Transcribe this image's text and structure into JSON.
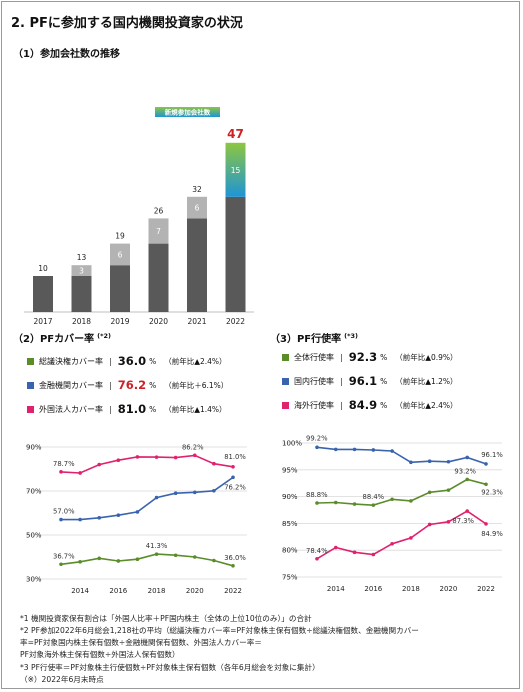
{
  "title": "2.  PFに参加する国内機関投資家の状況",
  "bar_section": {
    "title": "（1）参加会社数の推移"
  },
  "left_section": {
    "title": "（2）PFカバー率",
    "note": "(*2)"
  },
  "right_section": {
    "title": "（3）PF行使率",
    "note": "(*3)"
  },
  "colors": {
    "base": "#595959",
    "new_light": "#b3b3b3",
    "new_gradient_top": "#8dc63f",
    "new_gradient_bottom": "#1e95d6",
    "highlight_red": "#cc2227",
    "series_green": "#5b8c2a",
    "series_blue": "#3a63ad",
    "series_pink": "#e0226e"
  },
  "left_legend": [
    {
      "label": "総議決権カバー率",
      "value": "36.0",
      "unit": "%",
      "change": "（前年比▲2.4%）",
      "color": "#5b8c2a",
      "highlight": false
    },
    {
      "label": "金融機関カバー率",
      "value": "76.2",
      "unit": "%",
      "change": "（前年比＋6.1%）",
      "color": "#3a63ad",
      "highlight": true
    },
    {
      "label": "外国法人カバー率",
      "value": "81.0",
      "unit": "%",
      "change": "（前年比▲1.4%）",
      "color": "#e0226e",
      "highlight": false
    }
  ],
  "right_legend": [
    {
      "label": "全体行使率",
      "value": "92.3",
      "unit": "%",
      "change": "（前年比▲0.9%）",
      "color": "#5b8c2a"
    },
    {
      "label": "国内行使率",
      "value": "96.1",
      "unit": "%",
      "change": "（前年比▲1.2%）",
      "color": "#3a63ad"
    },
    {
      "label": "海外行使率",
      "value": "84.9",
      "unit": "%",
      "change": "（前年比▲2.4%）",
      "color": "#e0226e"
    }
  ],
  "footnotes": [
    "*1  機関投資家保有割合は「外国人比率＋PF国内株主（全体の上位10位のみ）」の合計",
    "*2  PF参加2022年6月総会1,218社の平均（総議決権カバー率=PF対象株主保有個数÷総議決権個数、金融機関カバー",
    "       率=PF対象国内株主保有個数÷金融機関保有個数、外国法人カバー率＝",
    "       PF対象海外株主保有個数÷外国法人保有個数）",
    "*3  PF行使率＝PF対象株主行使個数÷PF対象株主保有個数（各年6月総会を対象に集計）",
    "（※）2022年6月末時点"
  ],
  "chart_data": [
    {
      "type": "bar",
      "title": "（1）参加会社数の推移",
      "categories": [
        "2017",
        "2018",
        "2019",
        "2020",
        "2021",
        "2022"
      ],
      "series": [
        {
          "values": [
            10,
            10,
            13,
            19,
            26,
            32
          ]
        },
        {
          "values": [
            0,
            3,
            6,
            7,
            6,
            15
          ]
        }
      ],
      "totals": [
        10,
        13,
        19,
        26,
        32,
        47
      ],
      "legend_label": "新規参加会社数",
      "ylim": [
        0,
        50
      ]
    },
    {
      "type": "line",
      "title": "（2）PFカバー率",
      "x": [
        2013,
        2014,
        2015,
        2016,
        2017,
        2018,
        2019,
        2020,
        2021,
        2022
      ],
      "xticks": [
        "2014",
        "2016",
        "2018",
        "2020",
        "2022"
      ],
      "yticks": [
        "30%",
        "50%",
        "70%",
        "90%"
      ],
      "ylim": [
        30,
        90
      ],
      "series": [
        {
          "name": "総議決権カバー率",
          "color": "#5b8c2a",
          "values": [
            36.7,
            37.8,
            39.4,
            38.2,
            39.0,
            41.3,
            40.8,
            40.0,
            38.4,
            36.0
          ]
        },
        {
          "name": "金融機関カバー率",
          "color": "#3a63ad",
          "values": [
            57.0,
            57.0,
            57.8,
            59.0,
            60.5,
            67.0,
            69.0,
            69.4,
            70.1,
            76.2
          ]
        },
        {
          "name": "外国法人カバー率",
          "color": "#e0226e",
          "values": [
            78.7,
            78.2,
            82.0,
            84.0,
            85.5,
            85.4,
            85.2,
            86.2,
            82.4,
            81.0
          ]
        }
      ],
      "labels": [
        {
          "text": "78.7%",
          "series": 2,
          "index": 0
        },
        {
          "text": "57.0%",
          "series": 1,
          "index": 0
        },
        {
          "text": "36.7%",
          "series": 0,
          "index": 0
        },
        {
          "text": "41.3%",
          "series": 0,
          "index": 5
        },
        {
          "text": "86.2%",
          "series": 2,
          "index": 7
        },
        {
          "text": "81.0%",
          "series": 2,
          "index": 9
        },
        {
          "text": "76.2%",
          "series": 1,
          "index": 9
        },
        {
          "text": "36.0%",
          "series": 0,
          "index": 9
        }
      ]
    },
    {
      "type": "line",
      "title": "（3）PF行使率",
      "x": [
        2013,
        2014,
        2015,
        2016,
        2017,
        2018,
        2019,
        2020,
        2021,
        2022
      ],
      "xticks": [
        "2014",
        "2016",
        "2018",
        "2020",
        "2022"
      ],
      "yticks": [
        "75%",
        "80%",
        "85%",
        "90%",
        "95%",
        "100%"
      ],
      "ylim": [
        75,
        100
      ],
      "series": [
        {
          "name": "全体行使率",
          "color": "#5b8c2a",
          "values": [
            88.8,
            88.9,
            88.6,
            88.4,
            89.5,
            89.2,
            90.8,
            91.2,
            93.2,
            92.3
          ]
        },
        {
          "name": "国内行使率",
          "color": "#3a63ad",
          "values": [
            99.2,
            98.8,
            98.8,
            98.7,
            98.5,
            96.4,
            96.6,
            96.5,
            97.3,
            96.1
          ]
        },
        {
          "name": "海外行使率",
          "color": "#e0226e",
          "values": [
            78.4,
            80.5,
            79.6,
            79.2,
            81.2,
            82.3,
            84.8,
            85.3,
            87.3,
            84.9
          ]
        }
      ],
      "labels": [
        {
          "text": "99.2%",
          "series": 1,
          "index": 0
        },
        {
          "text": "88.8%",
          "series": 0,
          "index": 0
        },
        {
          "text": "88.4%",
          "series": 0,
          "index": 3
        },
        {
          "text": "78.4%",
          "series": 2,
          "index": 0
        },
        {
          "text": "96.1%",
          "series": 1,
          "index": 9
        },
        {
          "text": "93.2%",
          "series": 0,
          "index": 8
        },
        {
          "text": "92.3%",
          "series": 0,
          "index": 9
        },
        {
          "text": "87.3%",
          "series": 2,
          "index": 8
        },
        {
          "text": "84.9%",
          "series": 2,
          "index": 9
        }
      ]
    }
  ]
}
